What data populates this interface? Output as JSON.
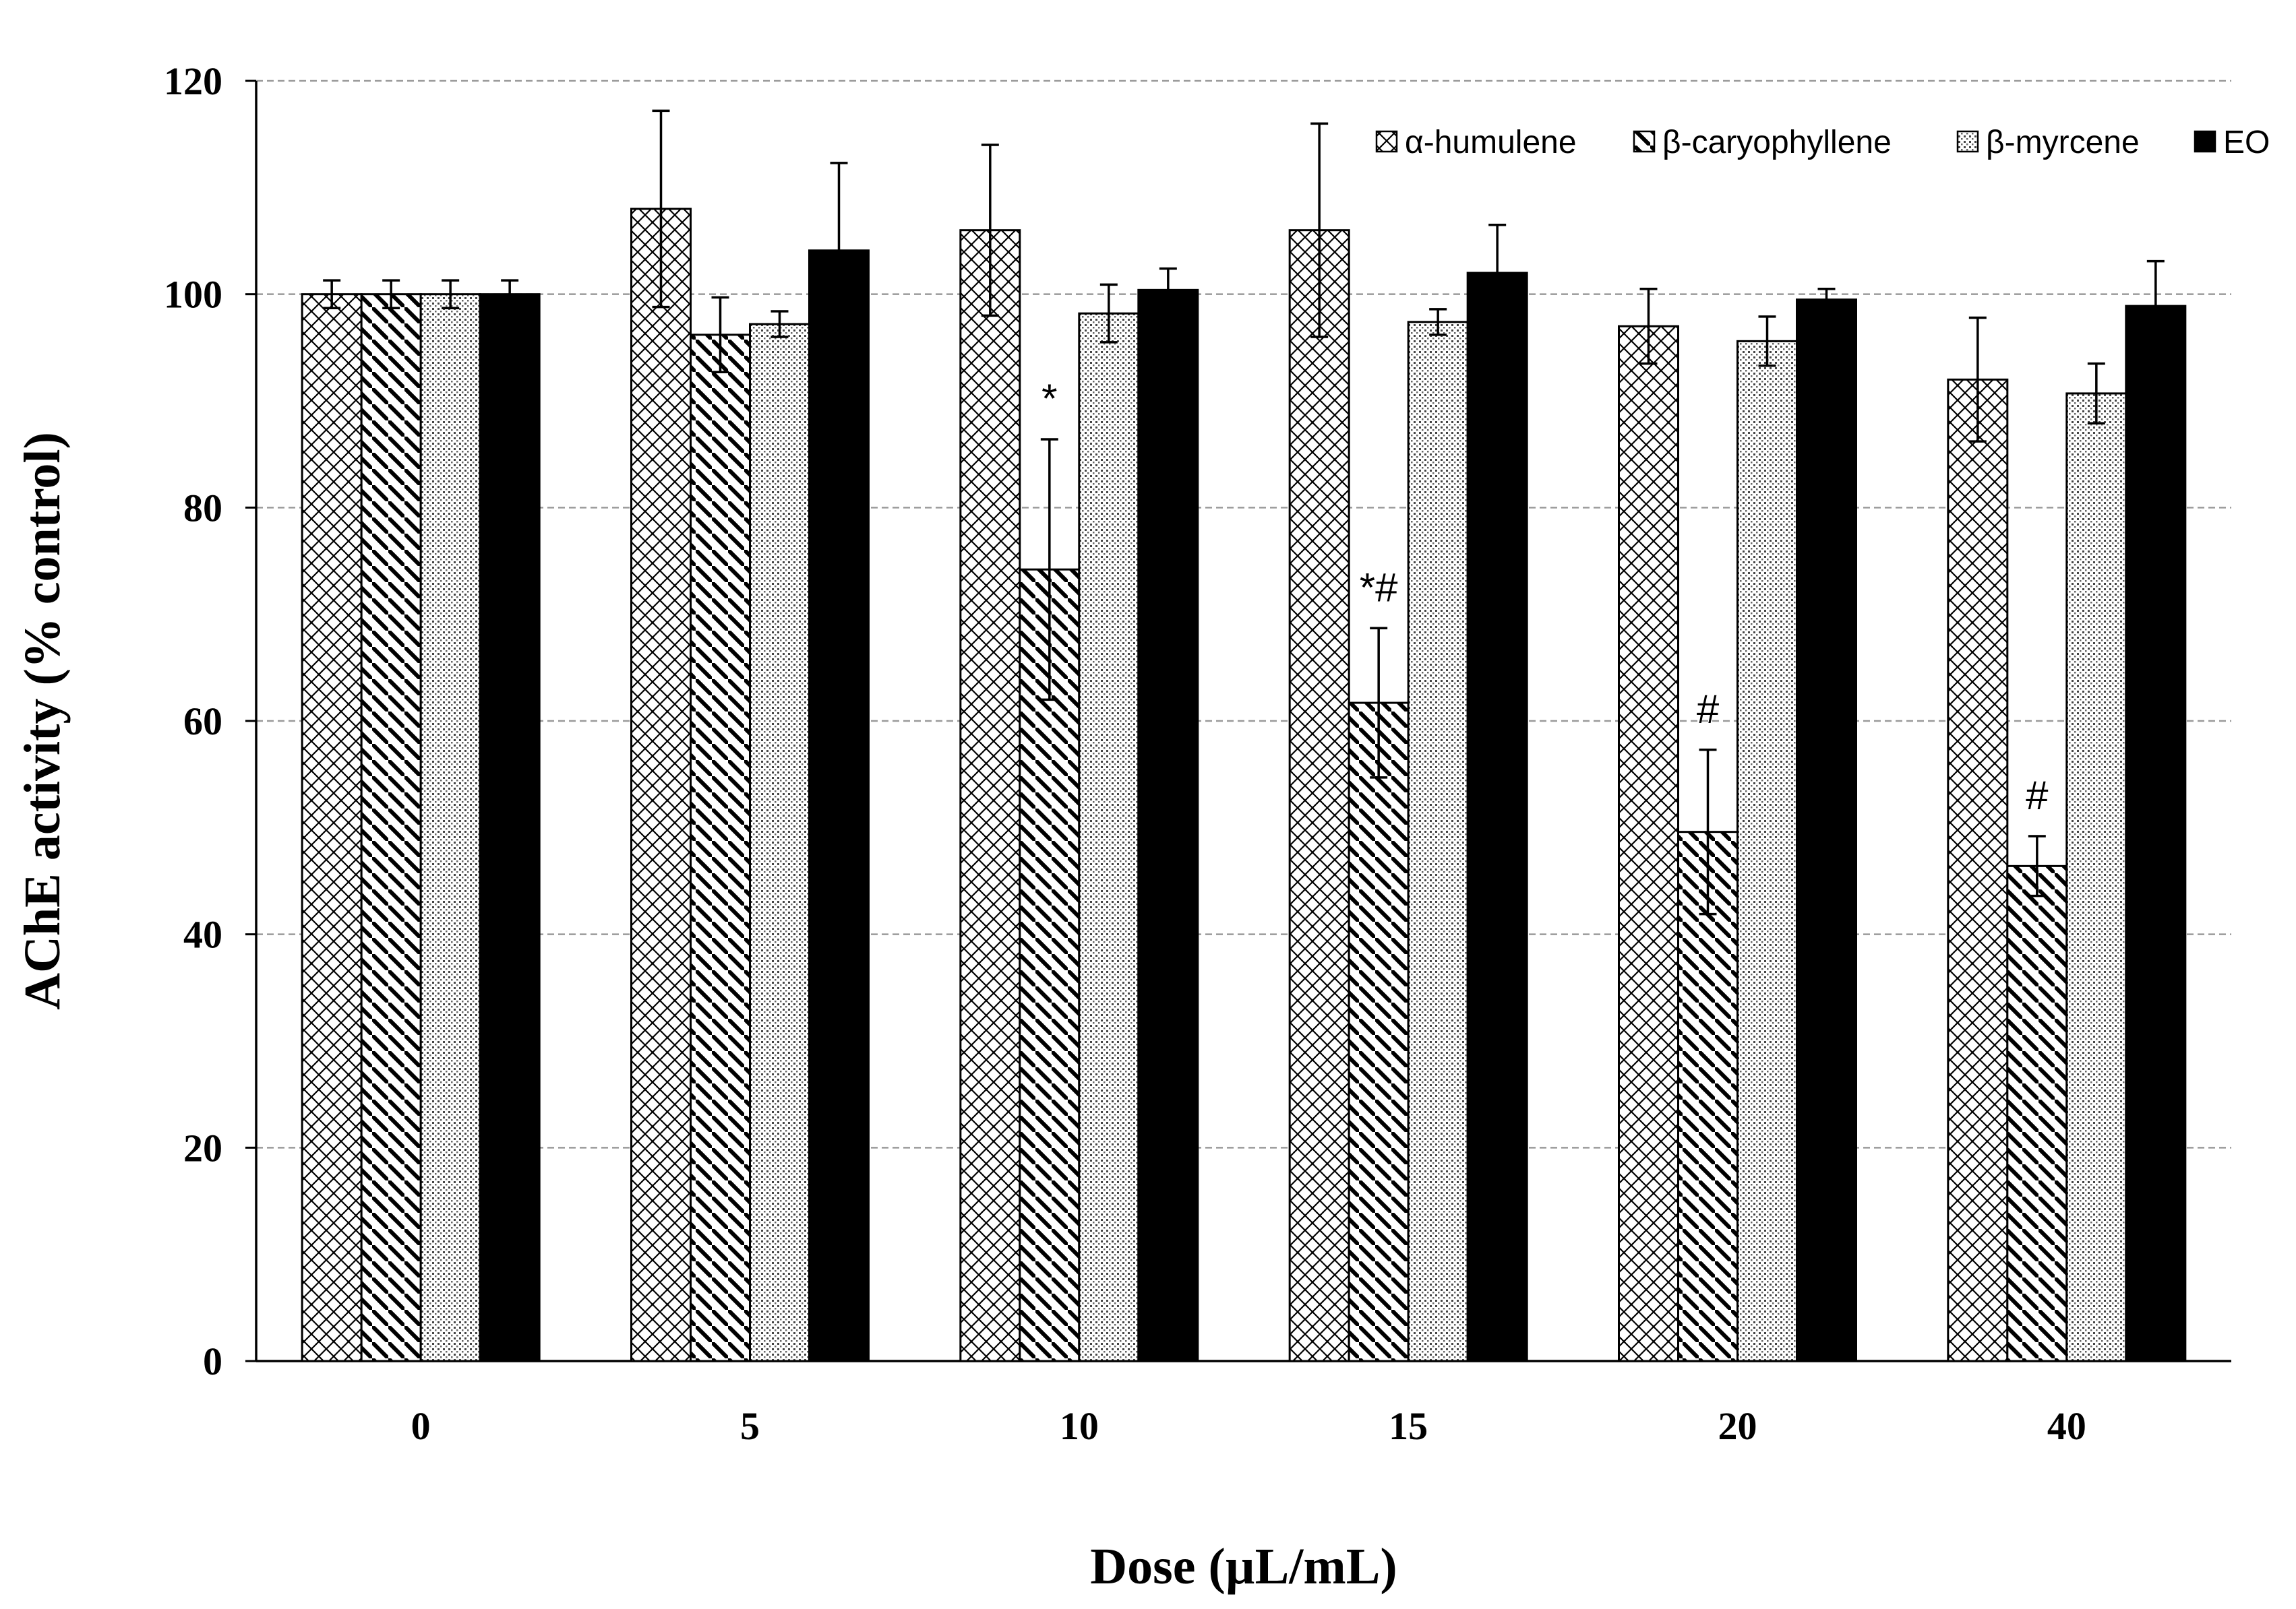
{
  "chart_data": {
    "type": "bar",
    "title": "",
    "xlabel": "Dose (µL/mL)",
    "ylabel": "AChE activity (% control)",
    "ylim": [
      0,
      120
    ],
    "yticks": [
      "0",
      "20",
      "40",
      "60",
      "80",
      "100",
      "120"
    ],
    "categories": [
      "0",
      "5",
      "10",
      "15",
      "20",
      "40"
    ],
    "grid": true,
    "legend_position": "top-right",
    "series": [
      {
        "name": "α-humulene",
        "pattern": "crosshatch",
        "values": [
          100,
          108,
          106,
          106,
          97,
          92
        ],
        "errors": [
          1.3,
          9.2,
          8,
          10,
          3.5,
          5.8
        ]
      },
      {
        "name": "β-caryophyllene",
        "pattern": "diagonal",
        "values": [
          100,
          96.2,
          74.2,
          61.7,
          49.6,
          46.4
        ],
        "errors": [
          1.3,
          3.5,
          12.2,
          7,
          7.7,
          2.8
        ]
      },
      {
        "name": "β-myrcene",
        "pattern": "dotted",
        "values": [
          100,
          97.2,
          98.2,
          97.4,
          95.6,
          90.7
        ],
        "errors": [
          1.3,
          1.2,
          2.7,
          1.2,
          2.3,
          2.8
        ]
      },
      {
        "name": "EO",
        "pattern": "solid",
        "values": [
          100,
          104.1,
          100.4,
          102,
          99.5,
          98.9
        ],
        "errors": [
          1.3,
          8.2,
          2,
          4.5,
          1,
          4.2
        ]
      }
    ],
    "annotations": [
      {
        "series": 1,
        "category": 2,
        "text": "*"
      },
      {
        "series": 1,
        "category": 3,
        "text": "*#"
      },
      {
        "series": 1,
        "category": 4,
        "text": "#"
      },
      {
        "series": 1,
        "category": 5,
        "text": "#"
      }
    ],
    "colors": {
      "bar_fill": "#ffffff",
      "bar_stroke": "#000000",
      "solid": "#000000",
      "grid": "#9a9a9a"
    }
  }
}
